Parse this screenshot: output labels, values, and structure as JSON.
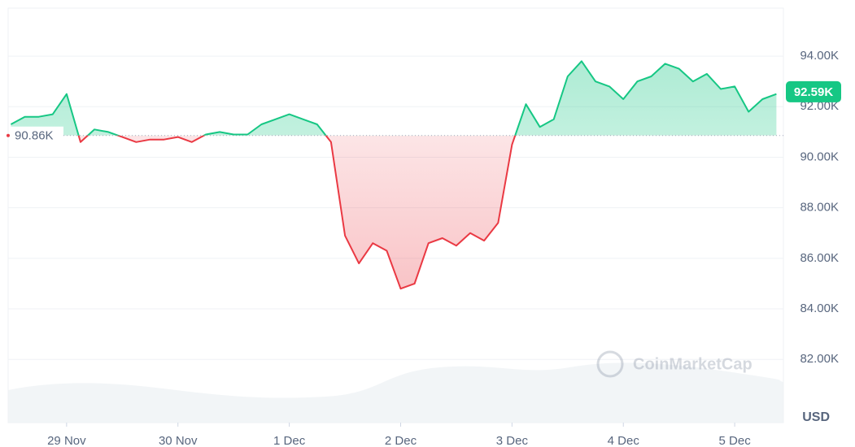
{
  "chart_data": {
    "type": "line",
    "values": [
      91.3,
      91.6,
      91.6,
      91.7,
      92.5,
      90.6,
      91.1,
      91.0,
      90.8,
      90.6,
      90.7,
      90.7,
      90.8,
      90.6,
      90.9,
      91.0,
      90.9,
      90.9,
      91.3,
      91.5,
      91.7,
      91.5,
      91.3,
      90.6,
      86.9,
      85.8,
      86.6,
      86.3,
      84.8,
      85.0,
      86.6,
      86.8,
      86.5,
      87.0,
      86.7,
      87.4,
      90.5,
      92.1,
      91.2,
      91.5,
      93.2,
      93.8,
      93.0,
      92.8,
      92.3,
      93.0,
      93.2,
      93.7,
      93.5,
      93.0,
      93.3,
      92.7,
      92.8,
      91.8,
      92.3,
      92.5
    ],
    "up_color": "#16c784",
    "down_color": "#ea3943",
    "baseline": {
      "value": 90.86,
      "label": "90.86K"
    },
    "last_price": {
      "value": 92.59,
      "label": "92.59K"
    },
    "xlim": [
      -0.2,
      55.5
    ],
    "xticks": [
      {
        "value": 4,
        "label": "29 Nov"
      },
      {
        "value": 12,
        "label": "30 Nov"
      },
      {
        "value": 20,
        "label": "1 Dec"
      },
      {
        "value": 28,
        "label": "2 Dec"
      },
      {
        "value": 36,
        "label": "3 Dec"
      },
      {
        "value": 44,
        "label": "4 Dec"
      },
      {
        "value": 52,
        "label": "5 Dec"
      }
    ],
    "ylim": [
      79.5,
      95.9
    ],
    "yticks": [
      {
        "value": 82,
        "label": "82.00K"
      },
      {
        "value": 84,
        "label": "84.00K"
      },
      {
        "value": 86,
        "label": "86.00K"
      },
      {
        "value": 88,
        "label": "88.00K"
      },
      {
        "value": 90,
        "label": "90.00K"
      },
      {
        "value": 92,
        "label": "92.00K"
      },
      {
        "value": 94,
        "label": "94.00K"
      }
    ],
    "y_axis_label": "USD",
    "watermark": "CoinMarketCap",
    "grid": true
  }
}
